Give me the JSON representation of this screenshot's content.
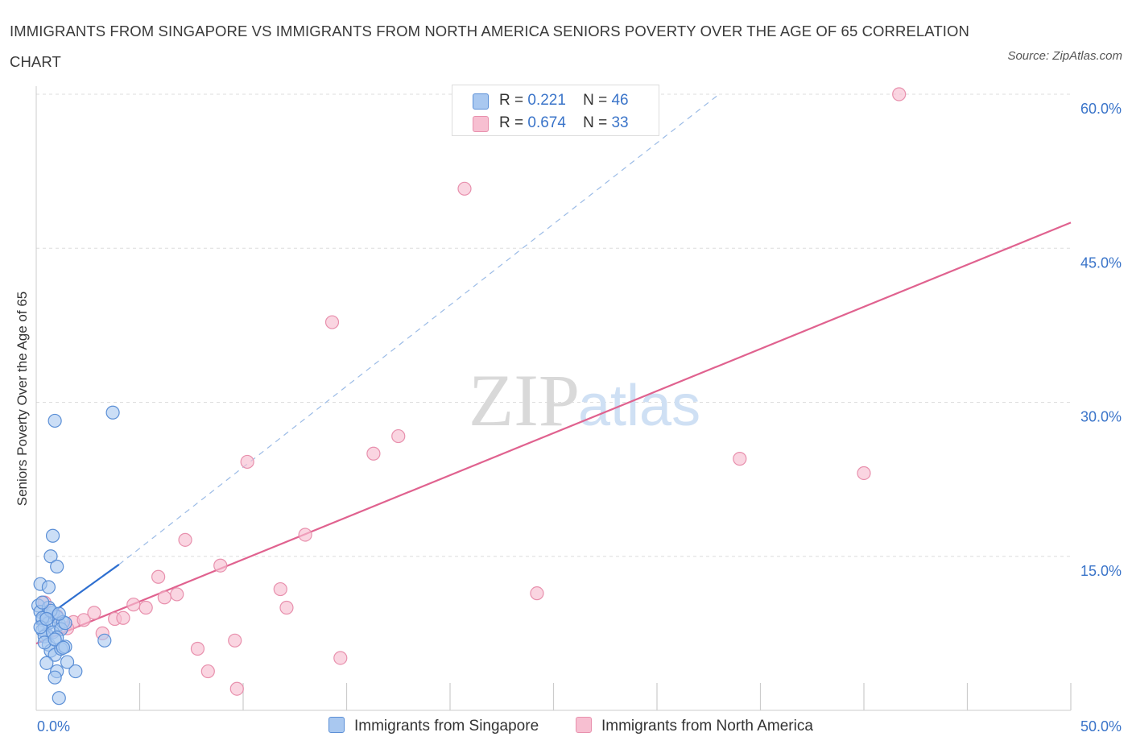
{
  "title": "IMMIGRANTS FROM SINGAPORE VS IMMIGRANTS FROM NORTH AMERICA SENIORS POVERTY OVER THE AGE OF 65 CORRELATION CHART",
  "source": "Source: ZipAtlas.com",
  "watermark": {
    "zip": "ZIP",
    "atlas": "atlas"
  },
  "legend": [
    {
      "r_label": "R =",
      "r_value": "0.221",
      "n_label": "N =",
      "n_value": "46"
    },
    {
      "r_label": "R =",
      "r_value": "0.674",
      "n_label": "N =",
      "n_value": "33"
    }
  ],
  "colors": {
    "singapore_fill": "#a9c8f0",
    "singapore_stroke": "#5b8fd6",
    "singapore_line": "#2e6fd0",
    "north_america_fill": "#f7bfd1",
    "north_america_stroke": "#e890ad",
    "north_america_line": "#e0628f",
    "tick_label": "#3a74c9",
    "grid": "#dddddd"
  },
  "chart_data": {
    "type": "scatter",
    "title": "IMMIGRANTS FROM SINGAPORE VS IMMIGRANTS FROM NORTH AMERICA SENIORS POVERTY OVER THE AGE OF 65 CORRELATION CHART",
    "xlabel": "",
    "ylabel": "Seniors Poverty Over the Age of 65",
    "xlim": [
      0,
      50
    ],
    "ylim": [
      0,
      60
    ],
    "x_tick_labels": [
      "0.0%",
      "50.0%"
    ],
    "y_ticks": [
      15,
      30,
      45,
      60
    ],
    "y_tick_labels": [
      "15.0%",
      "30.0%",
      "45.0%",
      "60.0%"
    ],
    "grid": true,
    "series": [
      {
        "name": "Immigrants from Singapore",
        "R": 0.221,
        "N": 46,
        "points": [
          [
            0.1,
            10.2
          ],
          [
            0.2,
            9.6
          ],
          [
            0.3,
            8.8
          ],
          [
            0.4,
            8.0
          ],
          [
            0.5,
            7.4
          ],
          [
            0.2,
            12.3
          ],
          [
            0.6,
            12.0
          ],
          [
            0.7,
            15.0
          ],
          [
            0.8,
            17.0
          ],
          [
            1.0,
            14.0
          ],
          [
            0.9,
            28.2
          ],
          [
            3.7,
            29.0
          ],
          [
            0.5,
            9.2
          ],
          [
            0.6,
            8.5
          ],
          [
            0.8,
            9.5
          ],
          [
            1.0,
            9.1
          ],
          [
            1.1,
            8.4
          ],
          [
            1.3,
            8.6
          ],
          [
            0.3,
            7.8
          ],
          [
            0.4,
            7.2
          ],
          [
            0.6,
            6.4
          ],
          [
            0.7,
            5.8
          ],
          [
            0.9,
            5.4
          ],
          [
            1.2,
            6.0
          ],
          [
            1.4,
            6.2
          ],
          [
            0.5,
            4.6
          ],
          [
            1.0,
            3.8
          ],
          [
            1.5,
            4.7
          ],
          [
            1.9,
            3.8
          ],
          [
            0.9,
            3.2
          ],
          [
            1.1,
            1.2
          ],
          [
            3.3,
            6.8
          ],
          [
            0.3,
            9.0
          ],
          [
            0.8,
            7.6
          ],
          [
            1.2,
            7.9
          ],
          [
            0.4,
            6.6
          ],
          [
            0.6,
            10.0
          ],
          [
            1.4,
            8.5
          ],
          [
            0.2,
            8.1
          ],
          [
            0.7,
            9.7
          ],
          [
            1.0,
            7.1
          ],
          [
            0.5,
            8.9
          ],
          [
            0.9,
            6.9
          ],
          [
            1.3,
            6.1
          ],
          [
            0.3,
            10.5
          ],
          [
            1.1,
            9.4
          ]
        ],
        "trend_solid": [
          [
            0.0,
            8.4
          ],
          [
            4.0,
            14.2
          ]
        ],
        "trend_dashed": [
          [
            4.0,
            14.2
          ],
          [
            33.0,
            60.0
          ]
        ]
      },
      {
        "name": "Immigrants from North America",
        "R": 0.674,
        "N": 33,
        "points": [
          [
            0.4,
            10.5
          ],
          [
            1.0,
            9.2
          ],
          [
            1.8,
            8.6
          ],
          [
            2.3,
            8.8
          ],
          [
            2.8,
            9.5
          ],
          [
            3.8,
            8.9
          ],
          [
            4.2,
            9.0
          ],
          [
            4.7,
            10.3
          ],
          [
            5.3,
            10.0
          ],
          [
            5.9,
            13.0
          ],
          [
            6.2,
            11.0
          ],
          [
            6.8,
            11.3
          ],
          [
            7.2,
            16.6
          ],
          [
            7.8,
            6.0
          ],
          [
            8.3,
            3.8
          ],
          [
            8.9,
            14.1
          ],
          [
            9.6,
            6.8
          ],
          [
            9.7,
            2.1
          ],
          [
            10.2,
            24.2
          ],
          [
            11.8,
            11.8
          ],
          [
            12.1,
            10.0
          ],
          [
            13.0,
            17.1
          ],
          [
            14.3,
            37.8
          ],
          [
            14.7,
            5.1
          ],
          [
            16.3,
            25.0
          ],
          [
            17.5,
            26.7
          ],
          [
            20.7,
            50.8
          ],
          [
            24.2,
            11.4
          ],
          [
            34.0,
            24.5
          ],
          [
            40.0,
            23.1
          ],
          [
            41.7,
            60.0
          ],
          [
            1.5,
            8.0
          ],
          [
            3.2,
            7.5
          ]
        ],
        "trend_solid": [
          [
            0.0,
            6.5
          ],
          [
            50.0,
            47.5
          ]
        ]
      }
    ]
  },
  "bottom_legend": [
    {
      "label": "Immigrants from Singapore"
    },
    {
      "label": "Immigrants from North America"
    }
  ]
}
